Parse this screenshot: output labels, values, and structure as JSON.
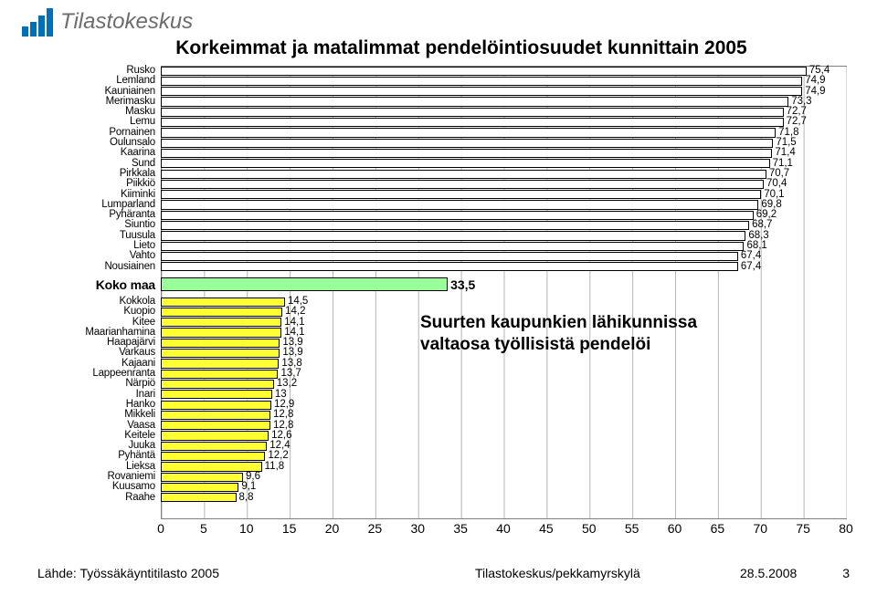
{
  "logo_text": "Tilastokeskus",
  "title": "Korkeimmat ja matalimmat pendelöintiosuudet kunnittain 2005",
  "annotation": {
    "line1": "Suurten kaupunkien lähikunnissa",
    "line2": "valtaosa työllisistä pendelöi"
  },
  "chart": {
    "type": "bar-horizontal",
    "xmin": 0,
    "xmax": 80,
    "xtick_step": 5,
    "colors": {
      "top": "#ffffff",
      "mid": "#99ff99",
      "bot": "#ffff33",
      "border": "#000000",
      "grid": "#b5b5b5"
    },
    "label_fontsize": 11.5,
    "groups": {
      "top": [
        {
          "name": "Rusko",
          "value": 75.4
        },
        {
          "name": "Lemland",
          "value": 74.9
        },
        {
          "name": "Kauniainen",
          "value": 74.9
        },
        {
          "name": "Merimasku",
          "value": 73.3
        },
        {
          "name": "Masku",
          "value": 72.7
        },
        {
          "name": "Lemu",
          "value": 72.7
        },
        {
          "name": "Pornainen",
          "value": 71.8
        },
        {
          "name": "Oulunsalo",
          "value": 71.5
        },
        {
          "name": "Kaarina",
          "value": 71.4
        },
        {
          "name": "Sund",
          "value": 71.1
        },
        {
          "name": "Pirkkala",
          "value": 70.7
        },
        {
          "name": "Piikkiö",
          "value": 70.4
        },
        {
          "name": "Kiiminki",
          "value": 70.1
        },
        {
          "name": "Lumparland",
          "value": 69.8
        },
        {
          "name": "Pyhäranta",
          "value": 69.2
        },
        {
          "name": "Siuntio",
          "value": 68.7
        },
        {
          "name": "Tuusula",
          "value": 68.3
        },
        {
          "name": "Lieto",
          "value": 68.1
        },
        {
          "name": "Vahto",
          "value": 67.4
        },
        {
          "name": "Nousiainen",
          "value": 67.4
        }
      ],
      "mid": [
        {
          "name": "Koko maa",
          "value": 33.5
        }
      ],
      "bot": [
        {
          "name": "Kokkola",
          "value": 14.5
        },
        {
          "name": "Kuopio",
          "value": 14.2
        },
        {
          "name": "Kitee",
          "value": 14.1
        },
        {
          "name": "Maarianhamina",
          "value": 14.1
        },
        {
          "name": "Haapajärvi",
          "value": 13.9
        },
        {
          "name": "Varkaus",
          "value": 13.9
        },
        {
          "name": "Kajaani",
          "value": 13.8
        },
        {
          "name": "Lappeenranta",
          "value": 13.7
        },
        {
          "name": "Närpiö",
          "value": 13.2
        },
        {
          "name": "Inari",
          "value": 13.0,
          "display": "13"
        },
        {
          "name": "Hanko",
          "value": 12.9
        },
        {
          "name": "Mikkeli",
          "value": 12.8
        },
        {
          "name": "Vaasa",
          "value": 12.8
        },
        {
          "name": "Keitele",
          "value": 12.6
        },
        {
          "name": "Juuka",
          "value": 12.4
        },
        {
          "name": "Pyhäntä",
          "value": 12.2
        },
        {
          "name": "Lieksa",
          "value": 11.8
        },
        {
          "name": "Rovaniemi",
          "value": 9.6
        },
        {
          "name": "Kuusamo",
          "value": 9.1
        },
        {
          "name": "Raahe",
          "value": 8.8
        }
      ]
    }
  },
  "footer": {
    "source": "Lähde: Työssäkäyntitilasto 2005",
    "center": "Tilastokeskus/pekkamyrskylä",
    "date": "28.5.2008",
    "page": "3"
  }
}
